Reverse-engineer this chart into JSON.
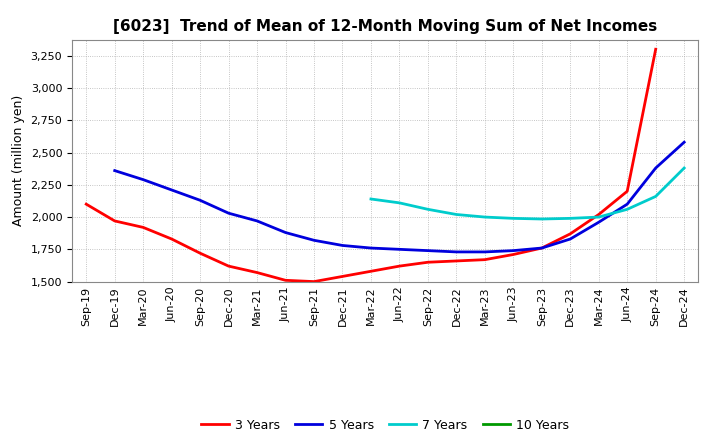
{
  "title": "[6023]  Trend of Mean of 12-Month Moving Sum of Net Incomes",
  "ylabel": "Amount (million yen)",
  "background_color": "#ffffff",
  "grid_color": "#aaaaaa",
  "ylim": [
    1500,
    3375
  ],
  "yticks": [
    1500,
    1750,
    2000,
    2250,
    2500,
    2750,
    3000,
    3250
  ],
  "series": {
    "3 Years": {
      "color": "#ff0000",
      "x_idx": [
        0,
        1,
        2,
        3,
        4,
        5,
        6,
        7,
        8,
        9,
        10,
        11,
        12,
        13,
        14,
        15,
        16,
        17,
        18,
        19,
        20
      ],
      "y": [
        2100,
        1970,
        1920,
        1830,
        1720,
        1620,
        1570,
        1510,
        1500,
        1540,
        1580,
        1620,
        1650,
        1660,
        1670,
        1710,
        1760,
        1870,
        2020,
        2200,
        3300
      ]
    },
    "5 Years": {
      "color": "#0000dd",
      "x_idx": [
        1,
        2,
        3,
        4,
        5,
        6,
        7,
        8,
        9,
        10,
        11,
        12,
        13,
        14,
        15,
        16,
        17,
        18,
        19,
        20,
        21
      ],
      "y": [
        2360,
        2290,
        2210,
        2130,
        2030,
        1970,
        1880,
        1820,
        1780,
        1760,
        1750,
        1740,
        1730,
        1730,
        1740,
        1760,
        1830,
        1960,
        2100,
        2380,
        2580
      ]
    },
    "7 Years": {
      "color": "#00cccc",
      "x_idx": [
        10,
        11,
        12,
        13,
        14,
        15,
        16,
        17,
        18,
        19,
        20,
        21
      ],
      "y": [
        2140,
        2110,
        2060,
        2020,
        2000,
        1990,
        1985,
        1990,
        2000,
        2060,
        2160,
        2380
      ]
    },
    "10 Years": {
      "color": "#009900",
      "x_idx": [],
      "y": []
    }
  },
  "legend_labels": [
    "3 Years",
    "5 Years",
    "7 Years",
    "10 Years"
  ],
  "x_tick_labels": [
    "Sep-19",
    "Dec-19",
    "Mar-20",
    "Jun-20",
    "Sep-20",
    "Dec-20",
    "Mar-21",
    "Jun-21",
    "Sep-21",
    "Dec-21",
    "Mar-22",
    "Jun-22",
    "Sep-22",
    "Dec-22",
    "Mar-23",
    "Jun-23",
    "Sep-23",
    "Dec-23",
    "Mar-24",
    "Jun-24",
    "Sep-24",
    "Dec-24"
  ],
  "title_fontsize": 11,
  "ylabel_fontsize": 9,
  "tick_fontsize": 8,
  "legend_fontsize": 9,
  "linewidth": 2.0
}
